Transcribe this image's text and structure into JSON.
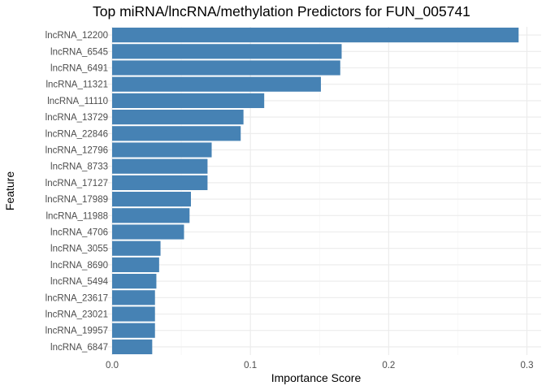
{
  "chart_data": {
    "type": "bar",
    "orientation": "horizontal",
    "title": "Top miRNA/lncRNA/methylation Predictors for FUN_005741",
    "xlabel": "Importance Score",
    "ylabel": "Feature",
    "xlim": [
      0,
      0.3
    ],
    "xticks": [
      0.0,
      0.1,
      0.2,
      0.3
    ],
    "xtick_labels": [
      "0.0",
      "0.1",
      "0.2",
      "0.3"
    ],
    "grid": true,
    "bar_color": "#4682b4",
    "categories": [
      "lncRNA_12200",
      "lncRNA_6545",
      "lncRNA_6491",
      "lncRNA_11321",
      "lncRNA_11110",
      "lncRNA_13729",
      "lncRNA_22846",
      "lncRNA_12796",
      "lncRNA_8733",
      "lncRNA_17127",
      "lncRNA_17989",
      "lncRNA_11988",
      "lncRNA_4706",
      "lncRNA_3055",
      "lncRNA_8690",
      "lncRNA_5494",
      "lncRNA_23617",
      "lncRNA_23021",
      "lncRNA_19957",
      "lncRNA_6847"
    ],
    "values": [
      0.294,
      0.166,
      0.165,
      0.151,
      0.11,
      0.095,
      0.093,
      0.072,
      0.069,
      0.069,
      0.057,
      0.056,
      0.052,
      0.035,
      0.034,
      0.032,
      0.031,
      0.031,
      0.031,
      0.029
    ]
  }
}
